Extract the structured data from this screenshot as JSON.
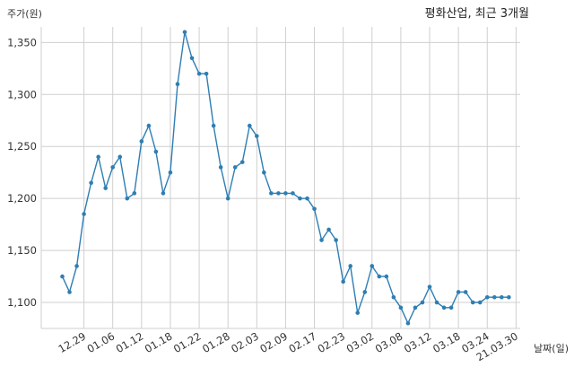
{
  "chart_data": {
    "type": "line",
    "title": "평화산업, 최근 3개월",
    "ylabel": "주가(원)",
    "xlabel": "날짜(일)",
    "color": "#2e7eb3",
    "grid": true,
    "ylim": [
      1075,
      1365
    ],
    "yticks": [
      1100,
      1150,
      1200,
      1250,
      1300,
      1350
    ],
    "ytick_labels": [
      "1,100",
      "1,150",
      "1,200",
      "1,250",
      "1,300",
      "1,350"
    ],
    "xtick_labels": [
      "12.29",
      "01.06",
      "01.12",
      "01.18",
      "01.22",
      "01.28",
      "02.03",
      "02.09",
      "02.17",
      "02.23",
      "03.02",
      "03.08",
      "03.12",
      "03.18",
      "03.24",
      "21.03.30"
    ],
    "xtick_indices": [
      3,
      7,
      11,
      15,
      19,
      23,
      27,
      31,
      35,
      39,
      43,
      47,
      51,
      55,
      59,
      63
    ],
    "values": [
      1125,
      1110,
      1135,
      1185,
      1215,
      1240,
      1210,
      1230,
      1240,
      1200,
      1205,
      1255,
      1270,
      1245,
      1205,
      1225,
      1310,
      1360,
      1335,
      1320,
      1320,
      1270,
      1230,
      1200,
      1230,
      1235,
      1270,
      1260,
      1225,
      1205,
      1205,
      1205,
      1205,
      1200,
      1200,
      1190,
      1160,
      1170,
      1160,
      1120,
      1135,
      1090,
      1110,
      1135,
      1125,
      1125,
      1105,
      1095,
      1080,
      1095,
      1100,
      1115,
      1100,
      1095,
      1095,
      1110,
      1110,
      1100,
      1100,
      1105,
      1105,
      1105,
      1105
    ]
  }
}
